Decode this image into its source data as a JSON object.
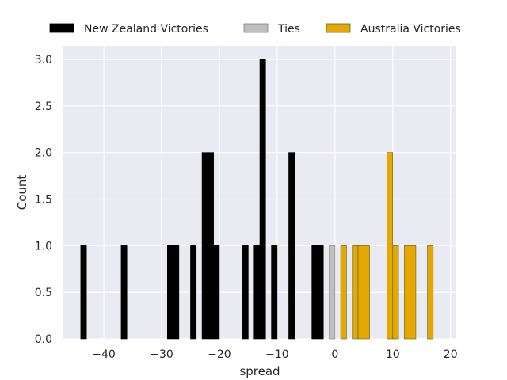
{
  "chart_data": {
    "type": "bar",
    "xlabel": "spread",
    "ylabel": "Count",
    "xlim": [
      -47,
      21
    ],
    "ylim": [
      0,
      3.0
    ],
    "xticks": [
      -40,
      -30,
      -20,
      -10,
      0,
      10,
      20
    ],
    "xtick_labels": [
      "−40",
      "−30",
      "−20",
      "−10",
      "0",
      "10",
      "20"
    ],
    "yticks": [
      0.0,
      0.5,
      1.0,
      1.5,
      2.0,
      2.5,
      3.0
    ],
    "ytick_labels": [
      "0.0",
      "0.5",
      "1.0",
      "1.5",
      "2.0",
      "2.5",
      "3.0"
    ],
    "grid": true,
    "legend_position": "top",
    "bin_width": 1,
    "series": [
      {
        "name": "New Zealand Victories",
        "color": "#000000",
        "edgecolor": "#000000",
        "points": [
          {
            "x": -43.5,
            "y": 1
          },
          {
            "x": -36.5,
            "y": 1
          },
          {
            "x": -28.5,
            "y": 1
          },
          {
            "x": -27.5,
            "y": 1
          },
          {
            "x": -24.5,
            "y": 1
          },
          {
            "x": -22.5,
            "y": 2
          },
          {
            "x": -21.5,
            "y": 2
          },
          {
            "x": -20.5,
            "y": 1
          },
          {
            "x": -15.5,
            "y": 1
          },
          {
            "x": -13.5,
            "y": 1
          },
          {
            "x": -12.5,
            "y": 3
          },
          {
            "x": -10.5,
            "y": 1
          },
          {
            "x": -7.5,
            "y": 2
          },
          {
            "x": -3.5,
            "y": 1
          },
          {
            "x": -2.5,
            "y": 1
          }
        ]
      },
      {
        "name": "Ties",
        "color": "#c0c0c0",
        "edgecolor": "#808080",
        "points": [
          {
            "x": -0.5,
            "y": 1
          }
        ]
      },
      {
        "name": "Australia Victories",
        "color": "#e6a800",
        "edgecolor": "#4a6b2a",
        "points": [
          {
            "x": 1.5,
            "y": 1
          },
          {
            "x": 3.5,
            "y": 1
          },
          {
            "x": 4.5,
            "y": 1
          },
          {
            "x": 5.5,
            "y": 1
          },
          {
            "x": 9.5,
            "y": 2
          },
          {
            "x": 10.5,
            "y": 1
          },
          {
            "x": 12.5,
            "y": 1
          },
          {
            "x": 13.5,
            "y": 1
          },
          {
            "x": 16.5,
            "y": 1
          }
        ]
      }
    ]
  }
}
